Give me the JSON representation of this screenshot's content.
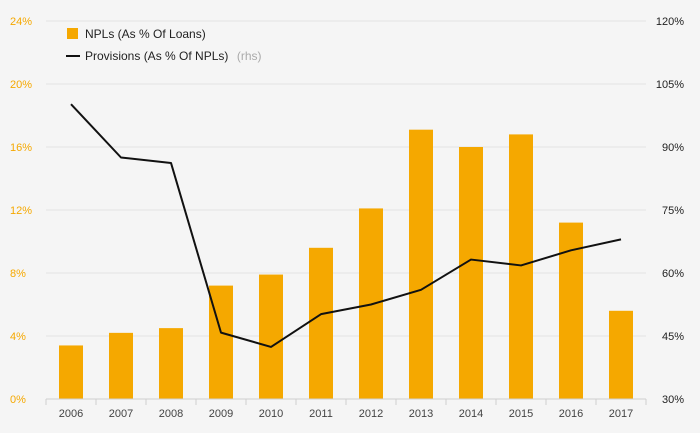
{
  "chart_data": {
    "type": "bar+line",
    "categories": [
      "2006",
      "2007",
      "2008",
      "2009",
      "2010",
      "2011",
      "2012",
      "2013",
      "2014",
      "2015",
      "2016",
      "2017"
    ],
    "series": [
      {
        "name": "NPLs (As % Of Loans)",
        "type": "bar",
        "axis": "left",
        "values": [
          3.4,
          4.2,
          4.5,
          7.2,
          7.9,
          9.6,
          12.1,
          17.1,
          16.0,
          16.8,
          11.2,
          5.6
        ]
      },
      {
        "name": "Provisions (As % Of NPLs)",
        "type": "line",
        "axis": "right",
        "values": [
          100.2,
          87.5,
          86.2,
          45.8,
          42.4,
          50.2,
          52.5,
          56.0,
          63.2,
          61.8,
          65.4,
          68.0
        ]
      }
    ],
    "left_axis": {
      "ylim": [
        0,
        24
      ],
      "ticks": [
        0,
        4,
        8,
        12,
        16,
        20,
        24
      ],
      "tick_labels": [
        "0%",
        "4%",
        "8%",
        "12%",
        "16%",
        "20%",
        "24%"
      ]
    },
    "right_axis": {
      "ylim": [
        30,
        120
      ],
      "ticks": [
        30,
        45,
        60,
        75,
        90,
        105,
        120
      ],
      "tick_labels": [
        "30%",
        "45%",
        "60%",
        "75%",
        "90%",
        "105%",
        "120%"
      ]
    },
    "legend": {
      "position": "top-left",
      "items": [
        {
          "label": "NPLs (As % Of Loans)",
          "suffix": ""
        },
        {
          "label": "Provisions (As % Of NPLs)",
          "suffix": "(rhs)"
        }
      ]
    },
    "colors": {
      "bar": "#f5a800",
      "line": "#111111",
      "grid": "#e4e4e4",
      "left_tick": "#f5a800",
      "right_tick": "#222222",
      "background": "#f5f5f5"
    }
  }
}
